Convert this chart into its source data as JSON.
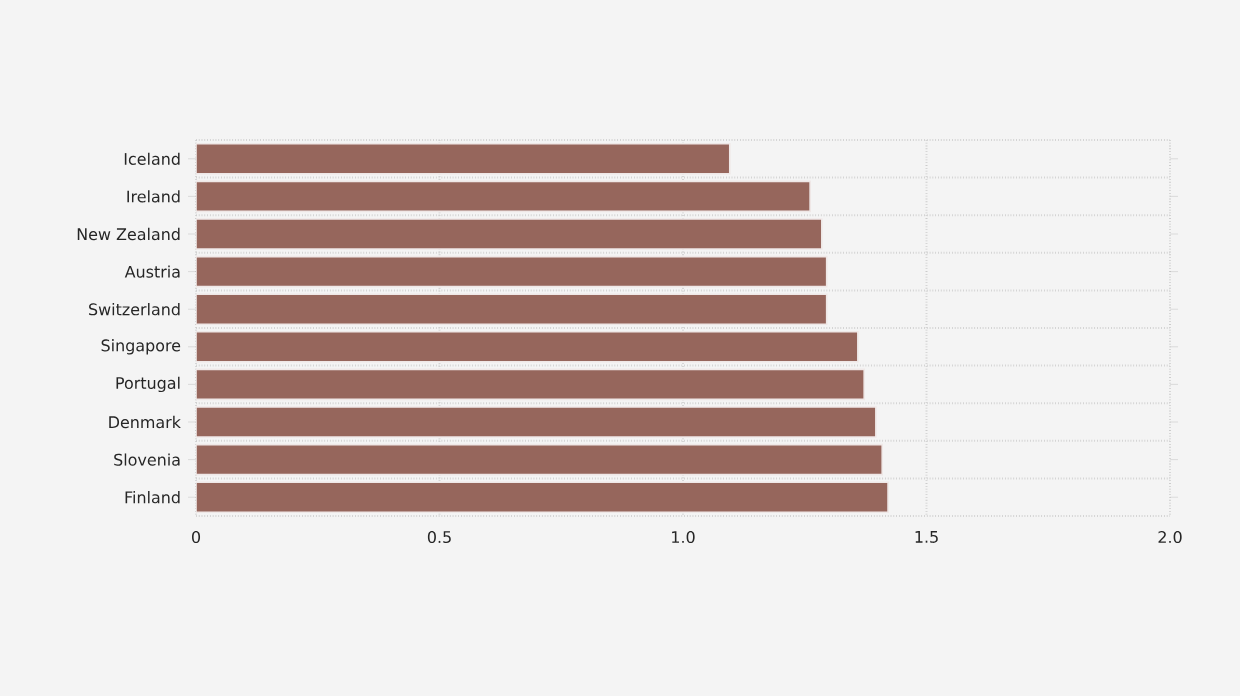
{
  "chart_data": {
    "type": "bar",
    "orientation": "horizontal",
    "categories": [
      "Iceland",
      "Ireland",
      "New Zealand",
      "Austria",
      "Switzerland",
      "Singapore",
      "Portugal",
      "Denmark",
      "Slovenia",
      "Finland"
    ],
    "values": [
      1.096,
      1.261,
      1.285,
      1.295,
      1.295,
      1.359,
      1.372,
      1.396,
      1.409,
      1.421
    ],
    "color": "#96665c",
    "xlim": [
      0,
      2.0
    ],
    "xticks": [
      0,
      0.5,
      {
        "value": 1,
        "label": "1.0"
      },
      1.5,
      {
        "value": 2,
        "label": "2.0"
      }
    ],
    "grid": true
  }
}
